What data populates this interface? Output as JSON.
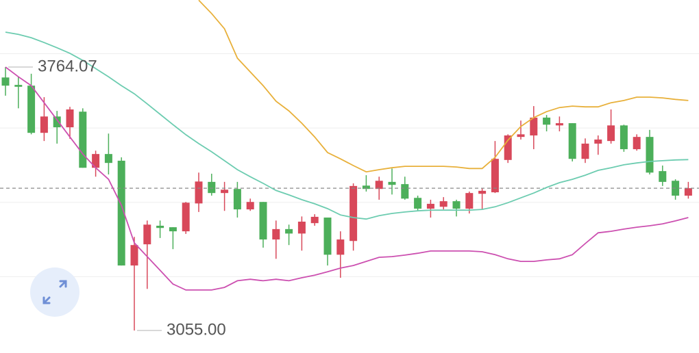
{
  "chart_data": {
    "type": "candlestick",
    "ylim": [
      2994.5,
      3944.5
    ],
    "yticks": [
      3200,
      3400,
      3600,
      3800
    ],
    "grid": true,
    "show_tick_labels": false,
    "up_color": "#d8485a",
    "down_color": "#4caf5a",
    "open": [
      3736,
      3716,
      3714,
      3587,
      3631,
      3602,
      3644,
      3493,
      3530,
      3512,
      3230,
      3287,
      3337,
      3333,
      3322,
      3397,
      3455,
      3425,
      3436,
      3381,
      3401,
      3300,
      3328,
      3316,
      3344,
      3359,
      3259,
      3296,
      3445,
      3436,
      3455,
      3449,
      3412,
      3383,
      3388,
      3403,
      3383,
      3423,
      3427,
      3514,
      3576,
      3580,
      3628,
      3607,
      3613,
      3517,
      3558,
      3565,
      3607,
      3543,
      3576,
      3484,
      3458,
      3418
    ],
    "high": [
      3764.07,
      3738,
      3746,
      3683,
      3646,
      3657,
      3653,
      3539,
      3585,
      3521,
      3307,
      3351,
      3351,
      3333,
      3401,
      3480,
      3477,
      3455,
      3455,
      3410,
      3401,
      3351,
      3340,
      3362,
      3368,
      3359,
      3322,
      3451,
      3473,
      3469,
      3491,
      3469,
      3418,
      3407,
      3414,
      3407,
      3429,
      3438,
      3565,
      3583,
      3620,
      3659,
      3635,
      3631,
      3613,
      3572,
      3580,
      3650,
      3609,
      3583,
      3595,
      3499,
      3462,
      3455
    ],
    "low": [
      3687,
      3653,
      3583,
      3565,
      3558,
      3571,
      3493,
      3469,
      3475,
      3230,
      3055.0,
      3167,
      3304,
      3274,
      3315,
      3374,
      3418,
      3377,
      3359,
      3377,
      3278,
      3248,
      3285,
      3270,
      3337,
      3230,
      3197,
      3270,
      3429,
      3407,
      3421,
      3407,
      3377,
      3359,
      3381,
      3362,
      3370,
      3381,
      3425,
      3506,
      3569,
      3543,
      3591,
      3591,
      3510,
      3506,
      3528,
      3558,
      3536,
      3539,
      3475,
      3444,
      3407,
      3410
    ],
    "close": [
      3714,
      3711,
      3587,
      3631,
      3602,
      3650,
      3493,
      3530,
      3506,
      3230,
      3285,
      3340,
      3331,
      3322,
      3399,
      3456,
      3425,
      3434,
      3381,
      3401,
      3300,
      3328,
      3316,
      3348,
      3361,
      3259,
      3300,
      3444,
      3436,
      3458,
      3447,
      3410,
      3383,
      3396,
      3403,
      3383,
      3425,
      3431,
      3517,
      3580,
      3583,
      3628,
      3609,
      3613,
      3517,
      3558,
      3569,
      3607,
      3543,
      3576,
      3480,
      3455,
      3418,
      3438
    ],
    "lines": [
      {
        "color": "#e8b03a",
        "values": [
          null,
          null,
          null,
          null,
          null,
          null,
          null,
          null,
          null,
          null,
          null,
          null,
          null,
          null,
          null,
          3944,
          3908,
          3867,
          3788,
          3751,
          3714,
          3672,
          3646,
          3613,
          3576,
          3534,
          3517,
          3499,
          3482,
          3488,
          3493,
          3497,
          3497,
          3497,
          3497,
          3495,
          3491,
          3491,
          3521,
          3567,
          3604,
          3628,
          3644,
          3655,
          3659,
          3657,
          3657,
          3668,
          3674,
          3683,
          3683,
          3681,
          3677,
          3674
        ]
      },
      {
        "color": "#6cccb0",
        "values": [
          3858,
          3852,
          3843,
          3830,
          3816,
          3801,
          3782,
          3760,
          3738,
          3714,
          3692,
          3665,
          3637,
          3609,
          3582,
          3558,
          3536,
          3512,
          3488,
          3469,
          3451,
          3432,
          3420,
          3407,
          3396,
          3383,
          3366,
          3359,
          3355,
          3364,
          3370,
          3374,
          3377,
          3379,
          3379,
          3379,
          3379,
          3381,
          3388,
          3399,
          3412,
          3425,
          3440,
          3453,
          3462,
          3473,
          3486,
          3493,
          3501,
          3506,
          3510,
          3512,
          3514,
          3515
        ]
      },
      {
        "color": "#cc4fb0",
        "values": [
          3764,
          3738,
          3714,
          3668,
          3622,
          3576,
          3530,
          3493,
          3462,
          3392,
          3291,
          3254,
          3217,
          3180,
          3164,
          3164,
          3164,
          3171,
          3189,
          3193,
          3189,
          3193,
          3189,
          3197,
          3204,
          3213,
          3223,
          3230,
          3241,
          3252,
          3254,
          3258,
          3263,
          3269,
          3269,
          3269,
          3269,
          3267,
          3259,
          3248,
          3241,
          3241,
          3245,
          3248,
          3259,
          3289,
          3318,
          3322,
          3328,
          3333,
          3337,
          3342,
          3350,
          3359
        ]
      }
    ],
    "annotations": [
      {
        "value": 3764.07,
        "label": "3764.07"
      },
      {
        "value": 3055.0,
        "label": "3055.00"
      }
    ]
  }
}
